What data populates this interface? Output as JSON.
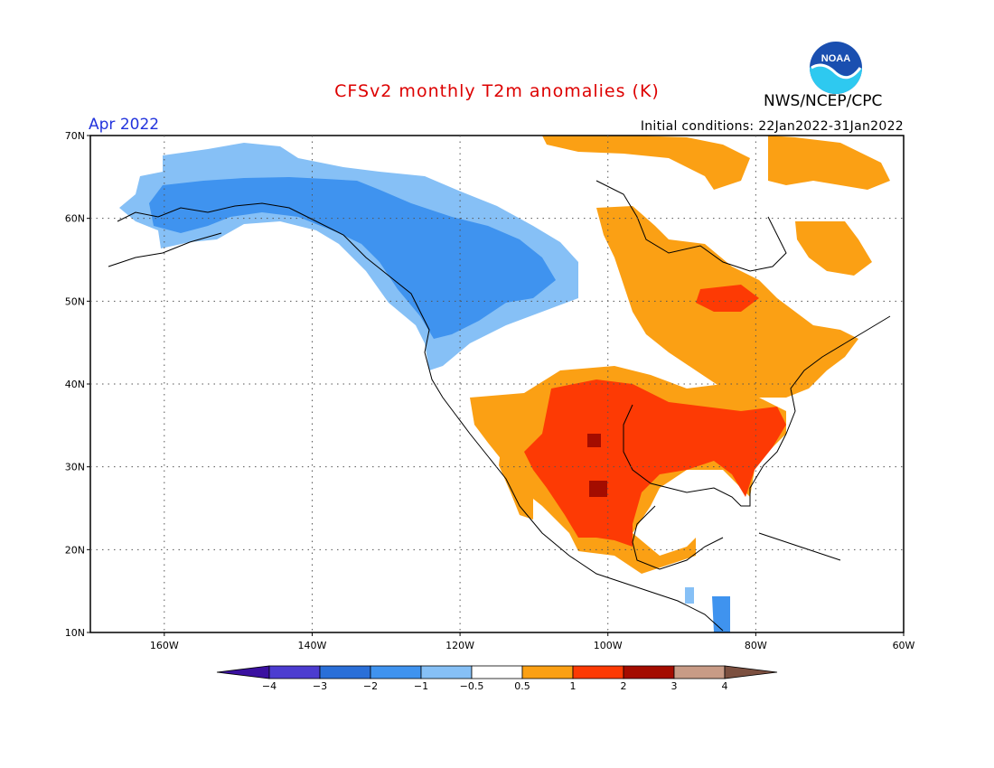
{
  "title": "CFSv2 monthly T2m anomalies (K)",
  "agency": "NWS/NCEP/CPC",
  "logo_text": "NOAA",
  "valid_month": "Apr 2022",
  "initial_conditions": "Initial conditions: 22Jan2022-31Jan2022",
  "colors": {
    "title": "#dd0000",
    "month": "#2233dd",
    "noaa_blue": "#1a4fb0",
    "noaa_cyan": "#2ec9f0"
  },
  "map": {
    "lon_range": [
      -170,
      -60
    ],
    "lat_range": [
      10,
      70
    ],
    "lon_ticks": [
      "160W",
      "140W",
      "120W",
      "100W",
      "80W",
      "60W"
    ],
    "lat_ticks": [
      "70N",
      "60N",
      "50N",
      "40N",
      "30N",
      "20N",
      "10N"
    ],
    "grid": "dotted"
  },
  "legend": {
    "labels": [
      "−4",
      "−3",
      "−2",
      "−1",
      "−0.5",
      "0.5",
      "1",
      "2",
      "3",
      "4"
    ],
    "colors": [
      "#3a10a0",
      "#4c3cd0",
      "#2a6fd8",
      "#3f93ef",
      "#86c0f6",
      "#ffffff",
      "#fba014",
      "#fd3a04",
      "#a40c00",
      "#c89b86",
      "#7c5040"
    ]
  },
  "anomaly_regions": [
    {
      "name": "alaska-cold",
      "class": "-1 to -0.5"
    },
    {
      "name": "northwest-canada-cold",
      "class": "-2 to -1"
    },
    {
      "name": "south-central-us-warm",
      "class": "1 to 2"
    },
    {
      "name": "texas-oklahoma-hot",
      "class": "2 to 3"
    },
    {
      "name": "eastern-canada-warm",
      "class": "0.5 to 1"
    }
  ]
}
